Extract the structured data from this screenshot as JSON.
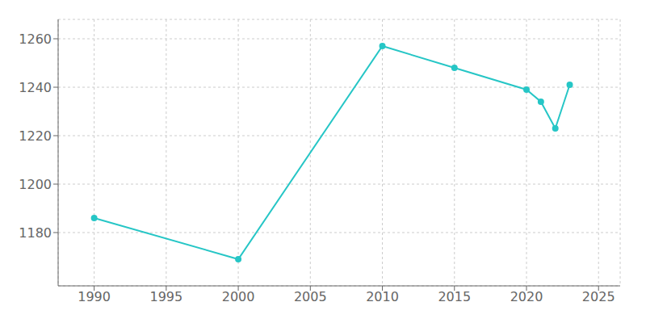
{
  "chart_data": {
    "type": "line",
    "x": [
      1990,
      2000,
      2010,
      2015,
      2020,
      2021,
      2022,
      2023
    ],
    "values": [
      1186,
      1169,
      1257,
      1248,
      1239,
      1234,
      1223,
      1241
    ],
    "color": "#26C6C6",
    "marker": "circle",
    "xlim": [
      1987.5,
      2026.5
    ],
    "ylim": [
      1158,
      1268
    ],
    "xticks": [
      1990,
      1995,
      2000,
      2005,
      2010,
      2015,
      2020,
      2025
    ],
    "yticks": [
      1180,
      1200,
      1220,
      1240,
      1260
    ],
    "grid": true
  }
}
